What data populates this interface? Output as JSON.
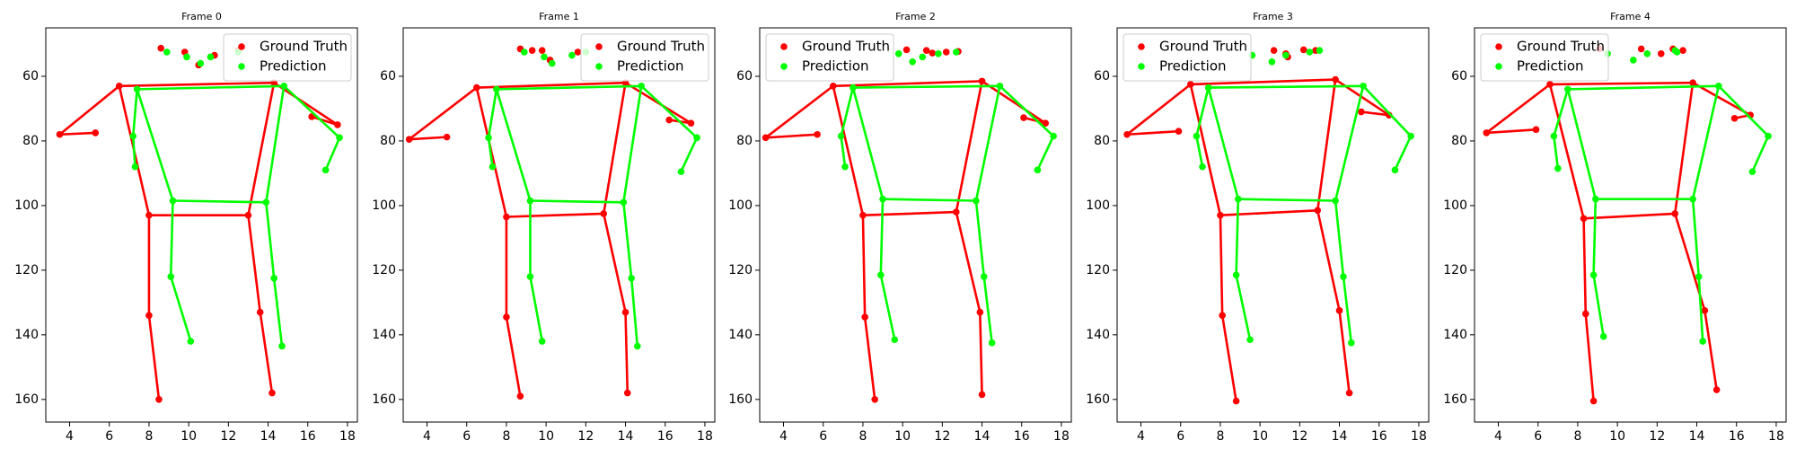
{
  "chart_data": [
    {
      "type": "scatter",
      "title": "Frame 0",
      "xlim": [
        2.8,
        18.5
      ],
      "ylim": [
        167,
        45
      ],
      "xticks": [
        4,
        6,
        8,
        10,
        12,
        14,
        16,
        18
      ],
      "yticks": [
        60,
        80,
        100,
        120,
        140,
        160
      ],
      "legend": "upper right",
      "series": [
        {
          "name": "Ground Truth",
          "color": "#ff0000",
          "x": [
            10.5,
            9.8,
            11.3,
            8.6,
            12.5,
            6.5,
            14.3,
            3.5,
            17.5,
            5.3,
            16.2,
            8.0,
            13.0,
            8.0,
            13.6,
            8.5,
            14.2
          ],
          "y": [
            56.5,
            52.5,
            53.5,
            51.3,
            52.0,
            63.0,
            62.0,
            78.0,
            75.0,
            77.5,
            72.5,
            103.0,
            103.0,
            134.0,
            133.0,
            160.0,
            158.0
          ]
        },
        {
          "name": "Prediction",
          "color": "#00ff00",
          "x": [
            10.6,
            8.9,
            11.1,
            9.9,
            12.5,
            7.4,
            14.8,
            7.2,
            17.6,
            7.3,
            16.9,
            9.2,
            13.9,
            9.1,
            14.3,
            10.1,
            14.7
          ],
          "y": [
            56.0,
            52.5,
            54.0,
            54.0,
            52.5,
            64.0,
            63.0,
            78.5,
            79.0,
            88.0,
            89.0,
            98.5,
            99.0,
            122.0,
            122.5,
            142.0,
            143.5
          ]
        }
      ]
    },
    {
      "type": "scatter",
      "title": "Frame 1",
      "xlim": [
        2.8,
        18.5
      ],
      "ylim": [
        167,
        45
      ],
      "xticks": [
        4,
        6,
        8,
        10,
        12,
        14,
        16,
        18
      ],
      "yticks": [
        60,
        80,
        100,
        120,
        140,
        160
      ],
      "legend": "upper right",
      "series": [
        {
          "name": "Ground Truth",
          "color": "#ff0000",
          "x": [
            10.2,
            9.3,
            9.8,
            8.7,
            11.6,
            6.5,
            14.0,
            3.1,
            17.3,
            5.0,
            16.2,
            8.0,
            12.9,
            8.0,
            14.0,
            8.7,
            14.1
          ],
          "y": [
            55.0,
            52.0,
            52.0,
            51.5,
            52.5,
            63.5,
            62.0,
            79.5,
            74.5,
            78.8,
            73.5,
            103.5,
            102.5,
            134.5,
            133.0,
            159.0,
            158.0
          ]
        },
        {
          "name": "Prediction",
          "color": "#00ff00",
          "x": [
            10.3,
            8.9,
            11.3,
            9.9,
            12.0,
            7.5,
            14.8,
            7.1,
            17.6,
            7.3,
            16.8,
            9.2,
            13.9,
            9.2,
            14.3,
            9.8,
            14.6
          ],
          "y": [
            56.0,
            52.5,
            53.5,
            54.0,
            52.5,
            64.0,
            63.0,
            79.0,
            79.0,
            88.0,
            89.5,
            98.5,
            99.0,
            122.0,
            122.5,
            142.0,
            143.5
          ]
        }
      ]
    },
    {
      "type": "scatter",
      "title": "Frame 2",
      "xlim": [
        2.8,
        18.5
      ],
      "ylim": [
        167,
        45
      ],
      "xticks": [
        4,
        6,
        8,
        10,
        12,
        14,
        16,
        18
      ],
      "yticks": [
        60,
        80,
        100,
        120,
        140,
        160
      ],
      "legend": "upper left",
      "series": [
        {
          "name": "Ground Truth",
          "color": "#ff0000",
          "x": [
            10.2,
            11.5,
            12.2,
            12.8,
            11.2,
            6.5,
            14.0,
            3.1,
            17.2,
            5.7,
            16.1,
            8.0,
            12.7,
            8.1,
            13.9,
            8.6,
            14.0
          ],
          "y": [
            51.8,
            52.8,
            52.5,
            52.3,
            52.0,
            63.0,
            61.5,
            79.0,
            74.5,
            78.0,
            72.8,
            103.0,
            102.0,
            134.5,
            133.0,
            160.0,
            158.5
          ]
        },
        {
          "name": "Prediction",
          "color": "#00ff00",
          "x": [
            10.5,
            9.8,
            11.0,
            11.8,
            12.7,
            7.5,
            14.9,
            6.9,
            17.6,
            7.1,
            16.8,
            9.0,
            13.7,
            8.9,
            14.1,
            9.6,
            14.5
          ],
          "y": [
            55.5,
            53.0,
            54.0,
            53.0,
            52.5,
            63.5,
            63.0,
            78.5,
            78.5,
            88.0,
            89.0,
            98.0,
            98.5,
            121.5,
            122.0,
            141.5,
            142.5
          ]
        }
      ]
    },
    {
      "type": "scatter",
      "title": "Frame 3",
      "xlim": [
        2.8,
        18.5
      ],
      "ylim": [
        167,
        45
      ],
      "xticks": [
        4,
        6,
        8,
        10,
        12,
        14,
        16,
        18
      ],
      "yticks": [
        60,
        80,
        100,
        120,
        140,
        160
      ],
      "legend": "upper left",
      "series": [
        {
          "name": "Ground Truth",
          "color": "#ff0000",
          "x": [
            11.4,
            10.7,
            12.2,
            12.8,
            11.3,
            6.5,
            13.8,
            3.3,
            16.5,
            5.9,
            15.1,
            8.0,
            12.9,
            8.1,
            14.0,
            8.8,
            14.5
          ],
          "y": [
            54.0,
            52.0,
            51.8,
            52.0,
            53.0,
            62.5,
            61.0,
            78.0,
            72.0,
            77.0,
            71.0,
            103.0,
            101.5,
            134.0,
            132.5,
            160.5,
            158.0
          ]
        },
        {
          "name": "Prediction",
          "color": "#00ff00",
          "x": [
            10.6,
            9.6,
            11.3,
            12.5,
            13.0,
            7.4,
            15.2,
            6.8,
            17.6,
            7.1,
            16.8,
            8.9,
            13.8,
            8.8,
            14.2,
            9.5,
            14.6
          ],
          "y": [
            55.5,
            53.5,
            53.5,
            52.5,
            52.0,
            63.5,
            63.0,
            78.5,
            78.5,
            88.0,
            89.0,
            98.0,
            98.5,
            121.5,
            122.0,
            141.5,
            142.5
          ]
        }
      ]
    },
    {
      "type": "scatter",
      "title": "Frame 4",
      "xlim": [
        2.8,
        18.5
      ],
      "ylim": [
        167,
        45
      ],
      "xticks": [
        4,
        6,
        8,
        10,
        12,
        14,
        16,
        18
      ],
      "yticks": [
        60,
        80,
        100,
        120,
        140,
        160
      ],
      "legend": "upper left",
      "series": [
        {
          "name": "Ground Truth",
          "color": "#ff0000",
          "x": [
            11.2,
            9.1,
            12.8,
            13.3,
            12.2,
            6.6,
            13.8,
            3.4,
            16.7,
            5.9,
            15.9,
            8.3,
            12.9,
            8.4,
            14.4,
            8.8,
            15.0
          ],
          "y": [
            51.5,
            51.5,
            51.5,
            52.0,
            53.0,
            62.5,
            62.0,
            77.5,
            72.0,
            76.5,
            73.0,
            104.0,
            102.5,
            133.5,
            132.5,
            160.5,
            157.0
          ]
        },
        {
          "name": "Prediction",
          "color": "#00ff00",
          "x": [
            10.8,
            9.5,
            11.5,
            12.9,
            13.0,
            7.5,
            15.1,
            6.8,
            17.6,
            7.0,
            16.8,
            8.9,
            13.8,
            8.8,
            14.1,
            9.3,
            14.3
          ],
          "y": [
            55.0,
            53.0,
            53.0,
            52.0,
            52.5,
            64.0,
            63.0,
            78.5,
            78.5,
            88.5,
            89.5,
            98.0,
            98.0,
            121.5,
            122.0,
            140.5,
            142.0
          ]
        }
      ]
    }
  ]
}
